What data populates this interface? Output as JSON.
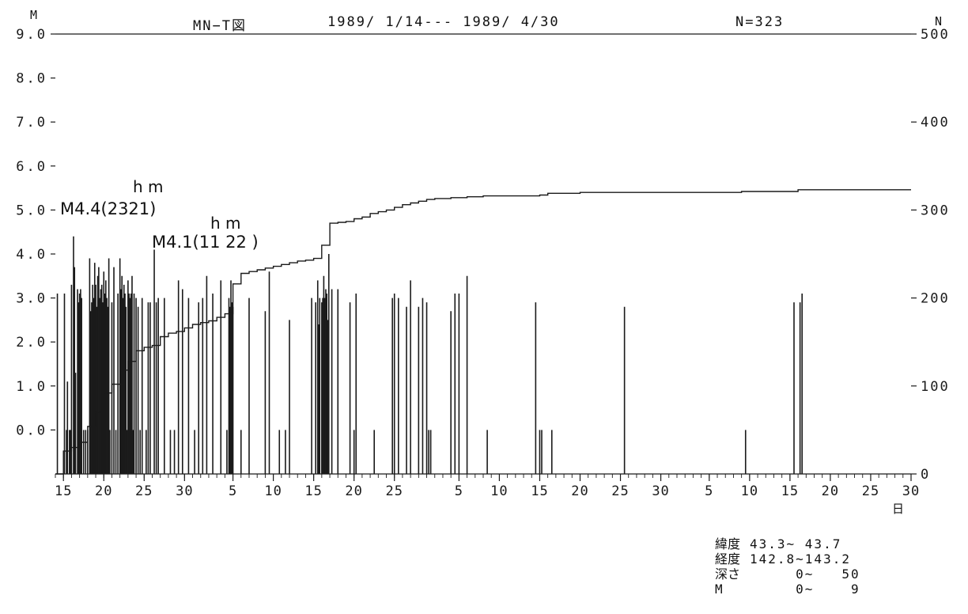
{
  "header": {
    "figure_name": "MN−T図",
    "period": "1989/ 1/14--- 1989/ 4/30",
    "count": "N=323"
  },
  "axes": {
    "left_label": "M",
    "right_label": "N",
    "day_unit": "日"
  },
  "annotations": [
    {
      "text": "M4.4(2321)",
      "sup": "h m"
    },
    {
      "text": "M4.1(11 22 )",
      "sup": "h   m"
    }
  ],
  "params": [
    {
      "label": "緯度",
      "value": "43.3~ 43.7"
    },
    {
      "label": "経度",
      "value": "142.8~143.2"
    },
    {
      "label": "深さ",
      "value": "     0~   50"
    },
    {
      "label": "M",
      "value": "     0~    9"
    }
  ],
  "chart_data": {
    "type": "bar",
    "title": "MN−T図",
    "period": "1989/ 1/14--- 1989/ 4/30",
    "n_total": 323,
    "y_left": {
      "label": "M",
      "range": [
        -1.0,
        9.0
      ],
      "ticks": [
        "0.0",
        "1.0",
        "2.0",
        "3.0",
        "4.0",
        "5.0",
        "6.0",
        "7.0",
        "8.0",
        "9.0"
      ]
    },
    "y_right": {
      "label": "N",
      "range": [
        0,
        500
      ],
      "ticks": [
        "0",
        "100",
        "200",
        "300",
        "400",
        "500"
      ]
    },
    "x": {
      "unit": "日",
      "start": "1989-01-14",
      "end": "1989-04-30",
      "tick_labels": [
        {
          "date": "1989-01-15",
          "label": "15"
        },
        {
          "date": "1989-01-20",
          "label": "20"
        },
        {
          "date": "1989-01-25",
          "label": "25"
        },
        {
          "date": "1989-01-30",
          "label": "30"
        },
        {
          "date": "1989-02-05",
          "label": "5"
        },
        {
          "date": "1989-02-10",
          "label": "10"
        },
        {
          "date": "1989-02-15",
          "label": "15"
        },
        {
          "date": "1989-02-20",
          "label": "20"
        },
        {
          "date": "1989-02-25",
          "label": "25"
        },
        {
          "date": "1989-03-05",
          "label": "5"
        },
        {
          "date": "1989-03-10",
          "label": "10"
        },
        {
          "date": "1989-03-15",
          "label": "15"
        },
        {
          "date": "1989-03-20",
          "label": "20"
        },
        {
          "date": "1989-03-25",
          "label": "25"
        },
        {
          "date": "1989-03-30",
          "label": "30"
        },
        {
          "date": "1989-04-05",
          "label": "5"
        },
        {
          "date": "1989-04-10",
          "label": "10"
        },
        {
          "date": "1989-04-15",
          "label": "15"
        },
        {
          "date": "1989-04-20",
          "label": "20"
        },
        {
          "date": "1989-04-25",
          "label": "25"
        },
        {
          "date": "1989-04-30",
          "label": "30"
        }
      ]
    },
    "events": [
      [
        "1989-01-14T06:00",
        3.1
      ],
      [
        "1989-01-15T03:00",
        3.1
      ],
      [
        "1989-01-15T09:00",
        0.0
      ],
      [
        "1989-01-15T12:00",
        1.1
      ],
      [
        "1989-01-15T18:00",
        0.0
      ],
      [
        "1989-01-15T21:00",
        0.0
      ],
      [
        "1989-01-16T00:00",
        3.3
      ],
      [
        "1989-01-16T06:00",
        4.4
      ],
      [
        "1989-01-16T09:00",
        3.7
      ],
      [
        "1989-01-16T12:00",
        1.3
      ],
      [
        "1989-01-16T18:00",
        3.2
      ],
      [
        "1989-01-16T21:00",
        2.9
      ],
      [
        "1989-01-17T00:00",
        3.1
      ],
      [
        "1989-01-17T03:00",
        3.2
      ],
      [
        "1989-01-17T06:00",
        3.0
      ],
      [
        "1989-01-17T12:00",
        0.0
      ],
      [
        "1989-01-17T18:00",
        0.0
      ],
      [
        "1989-01-18T00:00",
        0.0
      ],
      [
        "1989-01-18T06:00",
        3.9
      ],
      [
        "1989-01-18T09:00",
        2.7
      ],
      [
        "1989-01-18T12:00",
        2.9
      ],
      [
        "1989-01-18T15:00",
        3.3
      ],
      [
        "1989-01-18T18:00",
        3.0
      ],
      [
        "1989-01-18T21:00",
        3.8
      ],
      [
        "1989-01-19T00:00",
        3.3
      ],
      [
        "1989-01-19T03:00",
        2.8
      ],
      [
        "1989-01-19T06:00",
        3.5
      ],
      [
        "1989-01-19T09:00",
        3.7
      ],
      [
        "1989-01-19T12:00",
        3.0
      ],
      [
        "1989-01-19T15:00",
        3.2
      ],
      [
        "1989-01-19T18:00",
        3.3
      ],
      [
        "1989-01-19T21:00",
        2.9
      ],
      [
        "1989-01-20T00:00",
        3.6
      ],
      [
        "1989-01-20T03:00",
        3.1
      ],
      [
        "1989-01-20T06:00",
        3.4
      ],
      [
        "1989-01-20T09:00",
        3.0
      ],
      [
        "1989-01-20T12:00",
        2.8
      ],
      [
        "1989-01-20T15:00",
        3.9
      ],
      [
        "1989-01-20T18:00",
        0.0
      ],
      [
        "1989-01-21T00:00",
        2.9
      ],
      [
        "1989-01-21T06:00",
        3.7
      ],
      [
        "1989-01-21T12:00",
        0.0
      ],
      [
        "1989-01-21T18:00",
        3.1
      ],
      [
        "1989-01-22T00:00",
        3.9
      ],
      [
        "1989-01-22T03:00",
        3.2
      ],
      [
        "1989-01-22T06:00",
        3.5
      ],
      [
        "1989-01-22T09:00",
        3.0
      ],
      [
        "1989-01-22T12:00",
        3.3
      ],
      [
        "1989-01-22T15:00",
        3.1
      ],
      [
        "1989-01-22T18:00",
        2.8
      ],
      [
        "1989-01-22T21:00",
        0.0
      ],
      [
        "1989-01-23T00:00",
        3.4
      ],
      [
        "1989-01-23T03:00",
        3.1
      ],
      [
        "1989-01-23T06:00",
        3.0
      ],
      [
        "1989-01-23T09:00",
        3.1
      ],
      [
        "1989-01-23T12:00",
        3.5
      ],
      [
        "1989-01-23T15:00",
        0.0
      ],
      [
        "1989-01-23T18:00",
        3.1
      ],
      [
        "1989-01-24T00:00",
        3.0
      ],
      [
        "1989-01-24T06:00",
        2.8
      ],
      [
        "1989-01-24T12:00",
        0.0
      ],
      [
        "1989-01-24T18:00",
        3.0
      ],
      [
        "1989-01-25T06:00",
        0.0
      ],
      [
        "1989-01-25T12:00",
        2.9
      ],
      [
        "1989-01-25T18:00",
        2.9
      ],
      [
        "1989-01-26T06:00",
        4.1
      ],
      [
        "1989-01-26T12:00",
        2.9
      ],
      [
        "1989-01-26T18:00",
        3.0
      ],
      [
        "1989-01-27T12:00",
        3.0
      ],
      [
        "1989-01-28T06:00",
        0.0
      ],
      [
        "1989-01-28T18:00",
        0.0
      ],
      [
        "1989-01-29T06:00",
        3.4
      ],
      [
        "1989-01-29T18:00",
        3.2
      ],
      [
        "1989-01-30T12:00",
        3.0
      ],
      [
        "1989-01-31T06:00",
        0.0
      ],
      [
        "1989-01-31T18:00",
        2.9
      ],
      [
        "1989-02-01T06:00",
        3.0
      ],
      [
        "1989-02-01T18:00",
        3.5
      ],
      [
        "1989-02-02T12:00",
        3.1
      ],
      [
        "1989-02-03T12:00",
        3.4
      ],
      [
        "1989-02-04T06:00",
        0.0
      ],
      [
        "1989-02-04T12:00",
        3.0
      ],
      [
        "1989-02-04T15:00",
        2.8
      ],
      [
        "1989-02-04T18:00",
        3.4
      ],
      [
        "1989-02-04T21:00",
        2.9
      ],
      [
        "1989-02-05T00:00",
        2.8
      ],
      [
        "1989-02-06T00:00",
        0.0
      ],
      [
        "1989-02-07T00:00",
        3.0
      ],
      [
        "1989-02-09T00:00",
        2.7
      ],
      [
        "1989-02-09T12:00",
        3.6
      ],
      [
        "1989-02-10T18:00",
        0.0
      ],
      [
        "1989-02-11T12:00",
        0.0
      ],
      [
        "1989-02-12T00:00",
        2.5
      ],
      [
        "1989-02-14T18:00",
        3.0
      ],
      [
        "1989-02-15T06:00",
        2.9
      ],
      [
        "1989-02-15T12:00",
        3.4
      ],
      [
        "1989-02-15T15:00",
        2.4
      ],
      [
        "1989-02-15T18:00",
        3.0
      ],
      [
        "1989-02-16T00:00",
        2.9
      ],
      [
        "1989-02-16T03:00",
        3.0
      ],
      [
        "1989-02-16T06:00",
        3.5
      ],
      [
        "1989-02-16T09:00",
        3.0
      ],
      [
        "1989-02-16T12:00",
        3.2
      ],
      [
        "1989-02-16T15:00",
        3.1
      ],
      [
        "1989-02-16T18:00",
        2.5
      ],
      [
        "1989-02-16T21:00",
        4.0
      ],
      [
        "1989-02-17T06:00",
        3.2
      ],
      [
        "1989-02-18T00:00",
        3.2
      ],
      [
        "1989-02-19T12:00",
        2.9
      ],
      [
        "1989-02-20T00:00",
        0.0
      ],
      [
        "1989-02-20T06:00",
        3.1
      ],
      [
        "1989-02-22T12:00",
        0.0
      ],
      [
        "1989-02-24T18:00",
        3.0
      ],
      [
        "1989-02-25T00:00",
        3.1
      ],
      [
        "1989-02-25T12:00",
        3.0
      ],
      [
        "1989-02-26T12:00",
        2.8
      ],
      [
        "1989-02-27T00:00",
        3.4
      ],
      [
        "1989-02-28T00:00",
        2.8
      ],
      [
        "1989-02-28T12:00",
        3.0
      ],
      [
        "1989-03-01T00:00",
        2.9
      ],
      [
        "1989-03-01T06:00",
        0.0
      ],
      [
        "1989-03-01T12:00",
        0.0
      ],
      [
        "1989-03-04T00:00",
        2.7
      ],
      [
        "1989-03-04T12:00",
        3.1
      ],
      [
        "1989-03-05T00:00",
        3.1
      ],
      [
        "1989-03-06T00:00",
        3.5
      ],
      [
        "1989-03-08T12:00",
        0.0
      ],
      [
        "1989-03-14T12:00",
        2.9
      ],
      [
        "1989-03-15T00:00",
        0.0
      ],
      [
        "1989-03-15T06:00",
        0.0
      ],
      [
        "1989-03-16T12:00",
        0.0
      ],
      [
        "1989-03-25T12:00",
        2.8
      ],
      [
        "1989-04-09T12:00",
        0.0
      ],
      [
        "1989-04-15T12:00",
        2.9
      ],
      [
        "1989-04-16T06:00",
        2.9
      ],
      [
        "1989-04-16T12:00",
        3.1
      ]
    ],
    "cumulative_count": [
      [
        "1989-01-14",
        0
      ],
      [
        "1989-01-15",
        26
      ],
      [
        "1989-01-16",
        30
      ],
      [
        "1989-01-17",
        36
      ],
      [
        "1989-01-18",
        54
      ],
      [
        "1989-01-19",
        70
      ],
      [
        "1989-01-20",
        92
      ],
      [
        "1989-01-21",
        102
      ],
      [
        "1989-01-22",
        118
      ],
      [
        "1989-01-23",
        128
      ],
      [
        "1989-01-24",
        140
      ],
      [
        "1989-01-25",
        144
      ],
      [
        "1989-01-26",
        146
      ],
      [
        "1989-01-27",
        156
      ],
      [
        "1989-01-28",
        160
      ],
      [
        "1989-01-29",
        162
      ],
      [
        "1989-01-30",
        166
      ],
      [
        "1989-01-31",
        170
      ],
      [
        "1989-02-01",
        172
      ],
      [
        "1989-02-02",
        174
      ],
      [
        "1989-02-03",
        178
      ],
      [
        "1989-02-04",
        182
      ],
      [
        "1989-02-05",
        216
      ],
      [
        "1989-02-06",
        228
      ],
      [
        "1989-02-07",
        230
      ],
      [
        "1989-02-08",
        232
      ],
      [
        "1989-02-09",
        234
      ],
      [
        "1989-02-10",
        236
      ],
      [
        "1989-02-11",
        238
      ],
      [
        "1989-02-12",
        240
      ],
      [
        "1989-02-13",
        242
      ],
      [
        "1989-02-14",
        243
      ],
      [
        "1989-02-15",
        245
      ],
      [
        "1989-02-16",
        260
      ],
      [
        "1989-02-17",
        285
      ],
      [
        "1989-02-18",
        286
      ],
      [
        "1989-02-19",
        287
      ],
      [
        "1989-02-20",
        290
      ],
      [
        "1989-02-21",
        292
      ],
      [
        "1989-02-22",
        296
      ],
      [
        "1989-02-23",
        298
      ],
      [
        "1989-02-24",
        300
      ],
      [
        "1989-02-25",
        303
      ],
      [
        "1989-02-26",
        306
      ],
      [
        "1989-02-27",
        308
      ],
      [
        "1989-02-28",
        310
      ],
      [
        "1989-03-01",
        312
      ],
      [
        "1989-03-02",
        313
      ],
      [
        "1989-03-04",
        314
      ],
      [
        "1989-03-06",
        315
      ],
      [
        "1989-03-08",
        316
      ],
      [
        "1989-03-15",
        317
      ],
      [
        "1989-03-16",
        319
      ],
      [
        "1989-03-20",
        320
      ],
      [
        "1989-03-25",
        320
      ],
      [
        "1989-04-09",
        321
      ],
      [
        "1989-04-16",
        323
      ],
      [
        "1989-04-30",
        323
      ]
    ]
  }
}
